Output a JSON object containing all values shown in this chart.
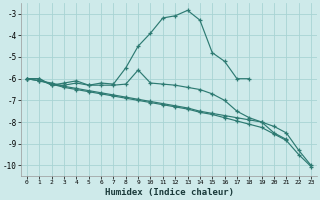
{
  "xlabel": "Humidex (Indice chaleur)",
  "bg_color": "#ceeaea",
  "line_color": "#2d7a72",
  "grid_color": "#a8d4d4",
  "xlim": [
    -0.5,
    23.5
  ],
  "ylim": [
    -10.5,
    -2.5
  ],
  "yticks": [
    -10,
    -9,
    -8,
    -7,
    -6,
    -5,
    -4,
    -3
  ],
  "xticks": [
    0,
    1,
    2,
    3,
    4,
    5,
    6,
    7,
    8,
    9,
    10,
    11,
    12,
    13,
    14,
    15,
    16,
    17,
    18,
    19,
    20,
    21,
    22,
    23
  ],
  "lines": [
    {
      "x": [
        0,
        1,
        2,
        3,
        4,
        5,
        6,
        7,
        8,
        9,
        10,
        11,
        12,
        13,
        14,
        15,
        16,
        17,
        18
      ],
      "y": [
        -6.0,
        -6.0,
        -6.3,
        -6.2,
        -6.1,
        -6.3,
        -6.2,
        -6.25,
        -5.5,
        -4.5,
        -3.9,
        -3.2,
        -3.1,
        -2.85,
        -3.3,
        -4.8,
        -5.2,
        -6.0,
        -6.0
      ]
    },
    {
      "x": [
        0,
        1,
        2,
        3,
        4,
        5,
        6,
        7,
        8,
        9,
        10,
        11,
        12,
        13,
        14,
        15,
        16,
        17,
        18,
        19,
        20,
        21
      ],
      "y": [
        -6.0,
        -6.0,
        -6.3,
        -6.3,
        -6.2,
        -6.3,
        -6.3,
        -6.3,
        -6.25,
        -5.6,
        -6.2,
        -6.25,
        -6.3,
        -6.4,
        -6.5,
        -6.7,
        -7.0,
        -7.5,
        -7.8,
        -8.0,
        -8.5,
        -8.8
      ]
    },
    {
      "x": [
        0,
        1,
        2,
        3,
        4,
        5,
        6,
        7,
        8,
        9,
        10,
        11,
        12,
        13,
        14,
        15,
        16,
        17,
        18,
        19,
        20,
        21,
        22,
        23
      ],
      "y": [
        -6.0,
        -6.1,
        -6.2,
        -6.35,
        -6.45,
        -6.55,
        -6.65,
        -6.75,
        -6.85,
        -6.95,
        -7.05,
        -7.15,
        -7.25,
        -7.35,
        -7.5,
        -7.6,
        -7.7,
        -7.8,
        -7.9,
        -8.0,
        -8.2,
        -8.5,
        -9.3,
        -10.0
      ]
    },
    {
      "x": [
        0,
        1,
        2,
        3,
        4,
        5,
        6,
        7,
        8,
        9,
        10,
        11,
        12,
        13,
        14,
        15,
        16,
        17,
        18,
        19,
        20,
        21,
        22,
        23
      ],
      "y": [
        -6.0,
        -6.1,
        -6.25,
        -6.4,
        -6.5,
        -6.6,
        -6.7,
        -6.8,
        -6.9,
        -7.0,
        -7.1,
        -7.2,
        -7.3,
        -7.4,
        -7.55,
        -7.65,
        -7.8,
        -7.95,
        -8.1,
        -8.25,
        -8.55,
        -8.85,
        -9.5,
        -10.05
      ]
    }
  ]
}
